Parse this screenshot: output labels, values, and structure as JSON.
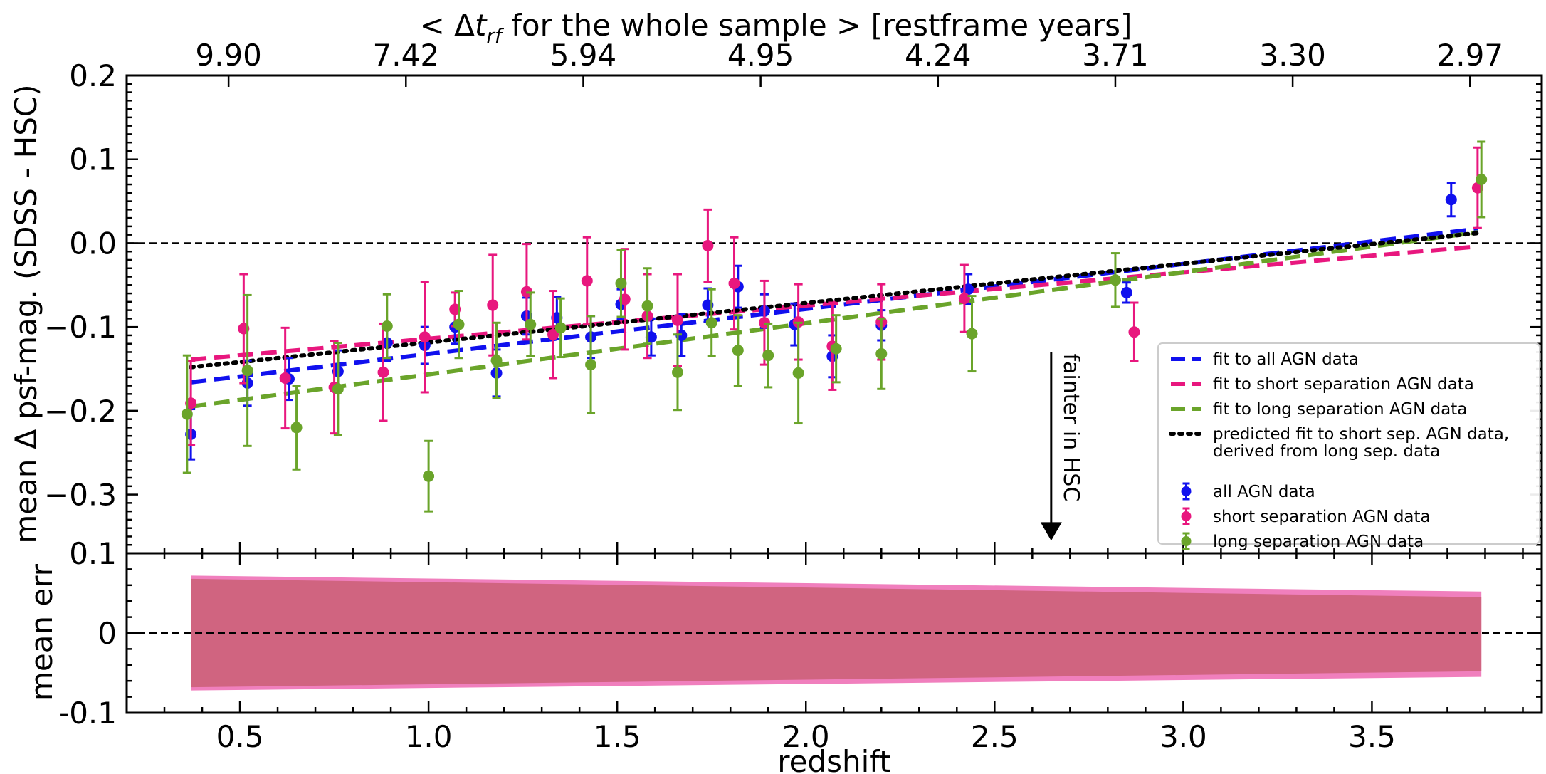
{
  "chart_data": [
    {
      "type": "scatter",
      "panel": "main",
      "xlabel": "redshift",
      "ylabel": "mean Δ psf-mag. (SDSS - HSC)",
      "top_xlabel": "< Δt_rf for the whole sample >  [restframe years]",
      "top_xlabel_parts": {
        "pre": "< Δ",
        "var": "t",
        "sub": "rf",
        "post": " for the whole sample >  [restframe years]"
      },
      "xlim": [
        0.2,
        3.95
      ],
      "ylim": [
        -0.37,
        0.2
      ],
      "x_ticks": [
        0.5,
        1.0,
        1.5,
        2.0,
        2.5,
        3.0,
        3.5
      ],
      "x_tick_labels": [
        "0.5",
        "1.0",
        "1.5",
        "2.0",
        "2.5",
        "3.0",
        "3.5"
      ],
      "y_ticks": [
        0.2,
        0.1,
        0.0,
        -0.1,
        -0.2,
        -0.3
      ],
      "y_tick_labels": [
        "0.2",
        "0.1",
        "0.0",
        "−0.1",
        "−0.2",
        "−0.3"
      ],
      "top_x_ticks": [
        0.47,
        0.94,
        1.41,
        1.88,
        2.35,
        2.82,
        3.29,
        3.76
      ],
      "top_x_tick_labels": [
        "9.90",
        "7.42",
        "5.94",
        "4.95",
        "4.24",
        "3.71",
        "3.30",
        "2.97"
      ],
      "legend_position": "lower right",
      "zero_line": {
        "y": 0.0,
        "style": "dashed"
      },
      "annotation": {
        "text": "fainter in HSC",
        "x": 2.65,
        "y_start": -0.13,
        "y_end": -0.355
      },
      "fits": [
        {
          "name": "fit to all AGN data",
          "color": "#1010ee",
          "style": "dashed",
          "x": [
            0.37,
            3.78
          ],
          "y": [
            -0.166,
            0.017
          ]
        },
        {
          "name": "fit to short separation AGN data",
          "color": "#e8177e",
          "style": "dashed",
          "x": [
            0.37,
            3.78
          ],
          "y": [
            -0.139,
            -0.004
          ]
        },
        {
          "name": "fit to long separation AGN data",
          "color": "#6aa42a",
          "style": "dashed",
          "x": [
            0.37,
            3.78
          ],
          "y": [
            -0.195,
            0.013
          ]
        },
        {
          "name": "predicted fit to short sep. AGN data,",
          "name2": " derived from long sep. data",
          "color": "#000000",
          "style": "dotted",
          "x": [
            0.37,
            3.78
          ],
          "y": [
            -0.148,
            0.012
          ]
        }
      ],
      "series": [
        {
          "name": "all AGN data",
          "color": "#1010ee",
          "x": [
            0.37,
            0.52,
            0.63,
            0.76,
            0.89,
            0.99,
            1.07,
            1.18,
            1.26,
            1.34,
            1.43,
            1.51,
            1.59,
            1.67,
            1.74,
            1.82,
            1.89,
            1.97,
            2.07,
            2.2,
            2.43,
            2.85,
            3.71
          ],
          "y": [
            -0.228,
            -0.167,
            -0.162,
            -0.153,
            -0.119,
            -0.122,
            -0.1,
            -0.155,
            -0.087,
            -0.089,
            -0.112,
            -0.073,
            -0.112,
            -0.11,
            -0.074,
            -0.052,
            -0.081,
            -0.097,
            -0.135,
            -0.098,
            -0.055,
            -0.059,
            0.052
          ],
          "err": [
            0.03,
            0.027,
            0.025,
            0.025,
            0.022,
            0.022,
            0.02,
            0.028,
            0.022,
            0.025,
            0.025,
            0.018,
            0.022,
            0.025,
            0.02,
            0.025,
            0.02,
            0.025,
            0.025,
            0.018,
            0.018,
            0.012,
            0.02
          ]
        },
        {
          "name": "short separation AGN data",
          "color": "#e8177e",
          "x": [
            0.37,
            0.51,
            0.62,
            0.75,
            0.88,
            0.99,
            1.07,
            1.17,
            1.26,
            1.33,
            1.42,
            1.52,
            1.58,
            1.66,
            1.74,
            1.81,
            1.89,
            1.98,
            2.07,
            2.2,
            2.42,
            2.87,
            3.78
          ],
          "y": [
            -0.191,
            -0.102,
            -0.161,
            -0.172,
            -0.154,
            -0.112,
            -0.079,
            -0.074,
            -0.058,
            -0.109,
            -0.045,
            -0.067,
            -0.087,
            -0.092,
            -0.003,
            -0.048,
            -0.095,
            -0.094,
            -0.123,
            -0.094,
            -0.066,
            -0.106,
            0.066
          ],
          "err": [
            0.05,
            0.065,
            0.06,
            0.055,
            0.058,
            0.066,
            0.02,
            0.06,
            0.057,
            0.052,
            0.052,
            0.06,
            0.05,
            0.055,
            0.043,
            0.055,
            0.05,
            0.045,
            0.052,
            0.045,
            0.04,
            0.035,
            0.048
          ]
        },
        {
          "name": "long separation AGN data",
          "color": "#6aa42a",
          "x": [
            0.36,
            0.52,
            0.65,
            0.76,
            0.89,
            1.0,
            1.08,
            1.18,
            1.27,
            1.35,
            1.43,
            1.51,
            1.58,
            1.66,
            1.75,
            1.82,
            1.9,
            1.98,
            2.08,
            2.2,
            2.44,
            2.82,
            3.79
          ],
          "y": [
            -0.204,
            -0.152,
            -0.22,
            -0.174,
            -0.099,
            -0.278,
            -0.097,
            -0.14,
            -0.097,
            -0.101,
            -0.145,
            -0.048,
            -0.075,
            -0.154,
            -0.095,
            -0.128,
            -0.134,
            -0.155,
            -0.126,
            -0.132,
            -0.108,
            -0.044,
            0.076
          ],
          "err": [
            0.07,
            0.09,
            0.05,
            0.055,
            0.038,
            0.042,
            0.04,
            0.045,
            0.038,
            0.035,
            0.058,
            0.04,
            0.045,
            0.045,
            0.04,
            0.042,
            0.038,
            0.06,
            0.04,
            0.042,
            0.045,
            0.032,
            0.045
          ]
        }
      ]
    },
    {
      "type": "area",
      "panel": "residual",
      "xlabel": "redshift",
      "ylabel": "mean err",
      "xlim": [
        0.2,
        3.95
      ],
      "ylim": [
        -0.1,
        0.1
      ],
      "y_ticks": [
        0.1,
        0,
        -0.1
      ],
      "y_tick_labels": [
        "0.1",
        "0",
        "-0.1"
      ],
      "zero_line": {
        "y": 0,
        "style": "dashed"
      },
      "bands": [
        {
          "name": "short separation error band",
          "color": "#f07fbd",
          "x": [
            0.37,
            3.79
          ],
          "upper": [
            0.072,
            0.052
          ],
          "lower": [
            -0.072,
            -0.055
          ]
        },
        {
          "name": "long separation error band",
          "color": "#d06480",
          "x": [
            0.37,
            3.79
          ],
          "upper": [
            0.068,
            0.045
          ],
          "lower": [
            -0.068,
            -0.048
          ]
        }
      ]
    }
  ]
}
